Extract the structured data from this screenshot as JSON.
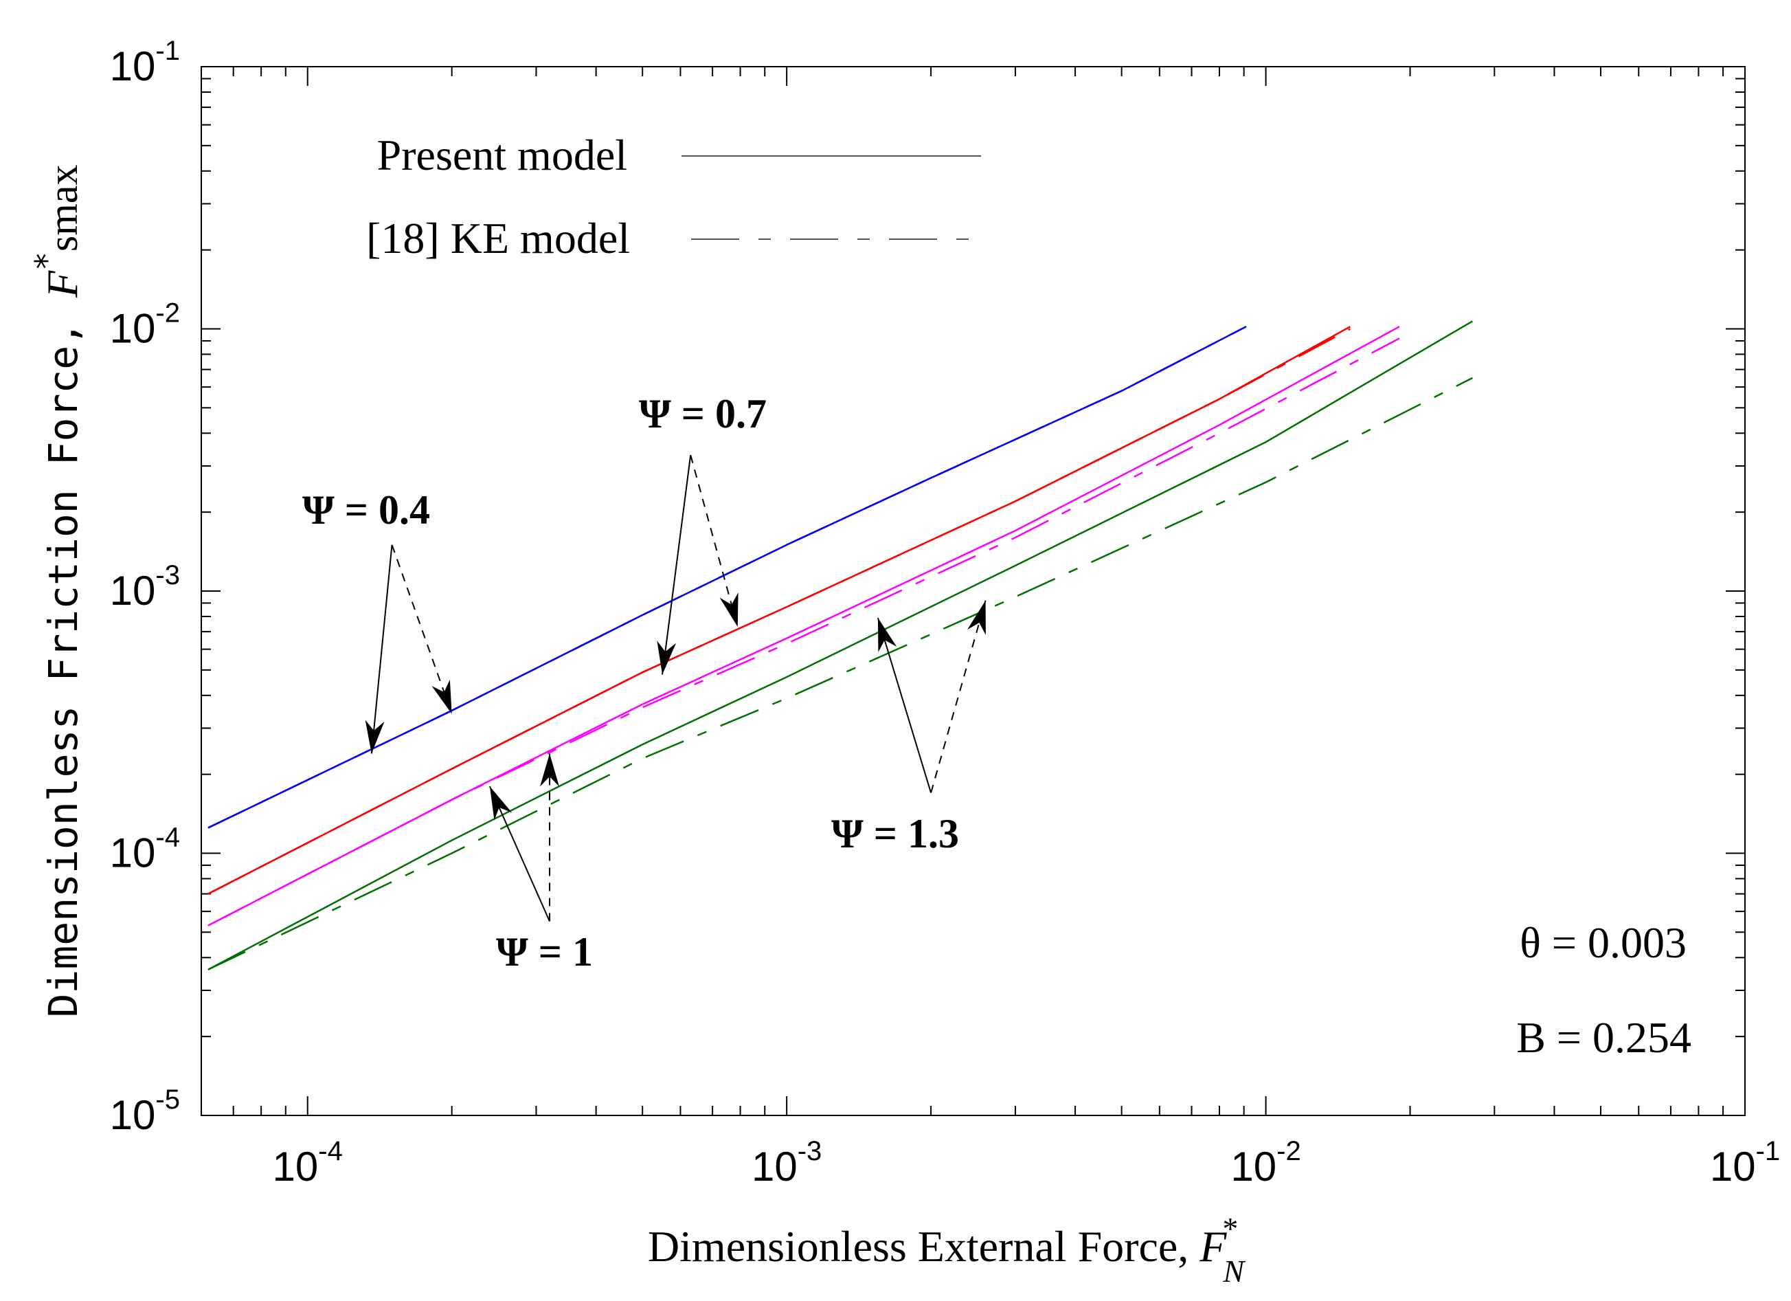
{
  "chart_data": {
    "type": "line",
    "scale": "log-log",
    "xlabel": "Dimensionless External Force, F*N",
    "xlabel_parts": {
      "main": "Dimensionless External Force, ",
      "var": "F",
      "sup": "*",
      "sub": "N"
    },
    "ylabel": "Dimensionless Friction Force, F*smax",
    "ylabel_parts": {
      "main": "Dimensionless Friction Force, ",
      "var": "F",
      "sup": "*",
      "tail": "smax"
    },
    "xlim": [
      6e-05,
      0.1
    ],
    "ylim": [
      1e-05,
      0.1
    ],
    "x_ticks": [
      {
        "base": "10",
        "exp": "-4",
        "value": 0.0001
      },
      {
        "base": "10",
        "exp": "-3",
        "value": 0.001
      },
      {
        "base": "10",
        "exp": "-2",
        "value": 0.01
      },
      {
        "base": "10",
        "exp": "-1",
        "value": 0.1
      }
    ],
    "y_ticks": [
      {
        "base": "10",
        "exp": "-5",
        "value": 1e-05
      },
      {
        "base": "10",
        "exp": "-4",
        "value": 0.0001
      },
      {
        "base": "10",
        "exp": "-3",
        "value": 0.001
      },
      {
        "base": "10",
        "exp": "-2",
        "value": 0.01
      },
      {
        "base": "10",
        "exp": "-1",
        "value": 0.1
      }
    ],
    "legend": [
      {
        "label": "Present model",
        "style": "solid"
      },
      {
        "label": "[18] KE model",
        "style": "dashed"
      }
    ],
    "series": [
      {
        "name": "Ψ = 0.4 Present model",
        "psi": "0.4",
        "color": "#0000ff",
        "style": "solid",
        "x": [
          6.2e-05,
          0.0002,
          0.0005,
          0.001,
          0.002,
          0.005,
          0.0091
        ],
        "y": [
          0.000125,
          0.00035,
          0.00081,
          0.0015,
          0.0027,
          0.0058,
          0.0102
        ]
      },
      {
        "name": "Ψ = 0.4 [18] KE model",
        "psi": "0.4",
        "color": "#0000ff",
        "style": "dashed",
        "x": [
          6.2e-05,
          0.0002,
          0.0005,
          0.001,
          0.002,
          0.005,
          0.0091
        ],
        "y": [
          0.000125,
          0.00035,
          0.00081,
          0.0015,
          0.0027,
          0.0058,
          0.0102
        ]
      },
      {
        "name": "Ψ = 0.7 Present model",
        "psi": "0.7",
        "color": "#ff0000",
        "style": "solid",
        "x": [
          6.2e-05,
          0.0002,
          0.0005,
          0.001,
          0.003,
          0.008,
          0.015
        ],
        "y": [
          7e-05,
          0.00021,
          0.00049,
          0.00087,
          0.0022,
          0.0054,
          0.0102
        ]
      },
      {
        "name": "Ψ = 0.7 [18] KE model",
        "psi": "0.7",
        "color": "#ff0000",
        "style": "dashed",
        "x": [
          6.2e-05,
          0.0002,
          0.0005,
          0.001,
          0.003,
          0.008,
          0.015
        ],
        "y": [
          7e-05,
          0.00021,
          0.00049,
          0.00087,
          0.0022,
          0.0054,
          0.01
        ]
      },
      {
        "name": "Ψ = 1 Present model",
        "psi": "1",
        "color": "#ff00ff",
        "style": "solid",
        "x": [
          6.2e-05,
          0.0002,
          0.0005,
          0.001,
          0.003,
          0.008,
          0.019
        ],
        "y": [
          5.3e-05,
          0.00016,
          0.00037,
          0.00066,
          0.0017,
          0.0043,
          0.0102
        ]
      },
      {
        "name": "Ψ = 1 [18] KE model",
        "psi": "1",
        "color": "#ff00ff",
        "style": "dashed",
        "x": [
          6.2e-05,
          0.0002,
          0.0005,
          0.001,
          0.003,
          0.008,
          0.019
        ],
        "y": [
          5.3e-05,
          0.00016,
          0.00036,
          0.00063,
          0.0016,
          0.004,
          0.0092
        ]
      },
      {
        "name": "Ψ = 1.3 Present model",
        "psi": "1.3",
        "color": "#007000",
        "style": "solid",
        "x": [
          6.2e-05,
          0.0002,
          0.0005,
          0.001,
          0.003,
          0.01,
          0.027
        ],
        "y": [
          3.6e-05,
          0.000112,
          0.00026,
          0.00047,
          0.00125,
          0.0037,
          0.0107
        ]
      },
      {
        "name": "Ψ = 1.3 [18] KE model",
        "psi": "1.3",
        "color": "#007000",
        "style": "dashed",
        "x": [
          6.2e-05,
          0.0002,
          0.0005,
          0.001,
          0.003,
          0.01,
          0.027
        ],
        "y": [
          3.6e-05,
          0.0001,
          0.00023,
          0.00039,
          0.00095,
          0.0026,
          0.0065
        ]
      }
    ],
    "annotations": [
      {
        "text": "Ψ = 0.4",
        "tail": [
          0.00015,
          0.0015
        ],
        "solid_to": [
          0.000136,
          0.00024
        ],
        "dashed_to": [
          0.0002,
          0.00034
        ]
      },
      {
        "text": "Ψ = 0.7",
        "tail": [
          0.00063,
          0.0033
        ],
        "solid_to": [
          0.00055,
          0.00048
        ],
        "dashed_to": [
          0.00079,
          0.00073
        ]
      },
      {
        "text": "Ψ = 1",
        "tail": [
          0.00032,
          5.5e-05
        ],
        "solid_to": [
          0.00024,
          0.00018
        ],
        "dashed_to": [
          0.00032,
          0.00024
        ]
      },
      {
        "text": "Ψ = 1.3",
        "tail": [
          0.002,
          0.00017
        ],
        "solid_to": [
          0.00155,
          0.00079
        ],
        "dashed_to": [
          0.0026,
          0.00092
        ]
      }
    ],
    "param_texts": [
      "θ = 0.003",
      "B = 0.254"
    ]
  }
}
